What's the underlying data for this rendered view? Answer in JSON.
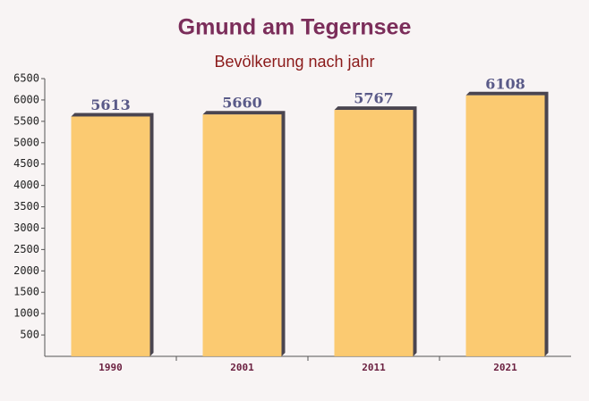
{
  "chart_data": {
    "type": "bar",
    "title": "Gmund am Tegernsee",
    "subtitle": "Bevölkerung nach jahr",
    "categories": [
      "1990",
      "2001",
      "2011",
      "2021"
    ],
    "values": [
      5613,
      5660,
      5767,
      6108
    ],
    "color": "#fbc565",
    "ylim": [
      0,
      6500
    ],
    "yticks": [
      500,
      1000,
      1500,
      2000,
      2500,
      3000,
      3500,
      4000,
      4500,
      5000,
      5500,
      6000,
      6500
    ]
  }
}
